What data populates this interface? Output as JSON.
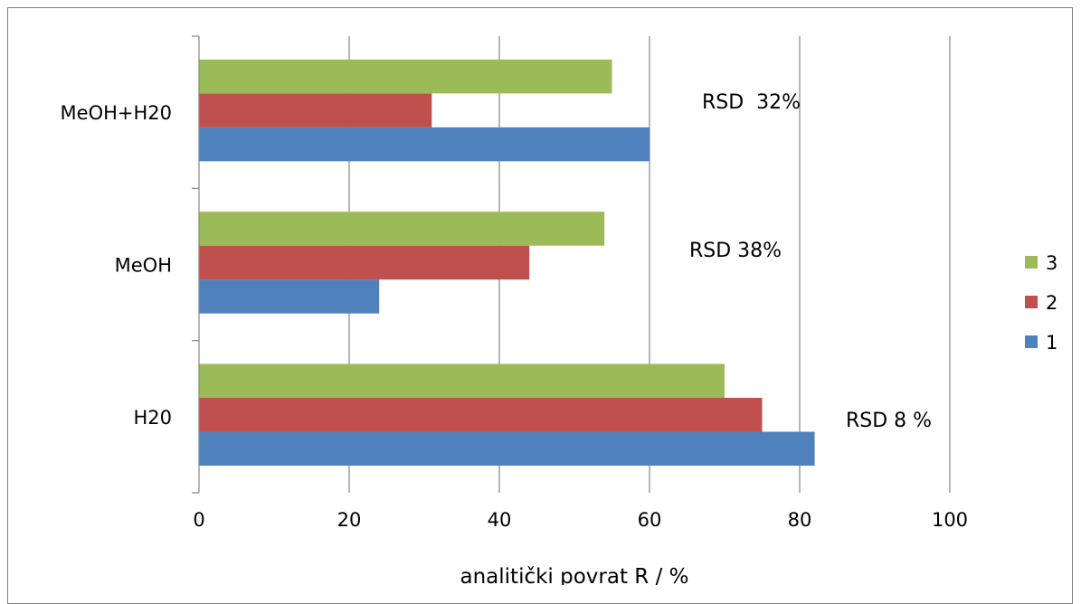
{
  "chart_data": {
    "type": "bar",
    "orientation": "horizontal",
    "categories": [
      "H20",
      "MeOH",
      "MeOH+H20"
    ],
    "series": [
      {
        "name": "1",
        "color": "#4f81bd",
        "values": [
          82,
          24,
          60
        ]
      },
      {
        "name": "2",
        "color": "#c0504d",
        "values": [
          75,
          44,
          31
        ]
      },
      {
        "name": "3",
        "color": "#9bbb59",
        "values": [
          70,
          54,
          55
        ]
      }
    ],
    "xlabel": "analitički povrat R / %",
    "ylabel": "",
    "xlim": [
      0,
      100
    ],
    "x_ticks": [
      0,
      20,
      40,
      60,
      80,
      100
    ],
    "grid": "vertical",
    "legend_position": "right",
    "legend_order": [
      "3",
      "2",
      "1"
    ],
    "annotations": [
      {
        "text": "RSD 8 %",
        "category": "H20"
      },
      {
        "text": "RSD 38%",
        "category": "MeOH"
      },
      {
        "text": "RSD  32%",
        "category": "MeOH+H20"
      }
    ]
  }
}
